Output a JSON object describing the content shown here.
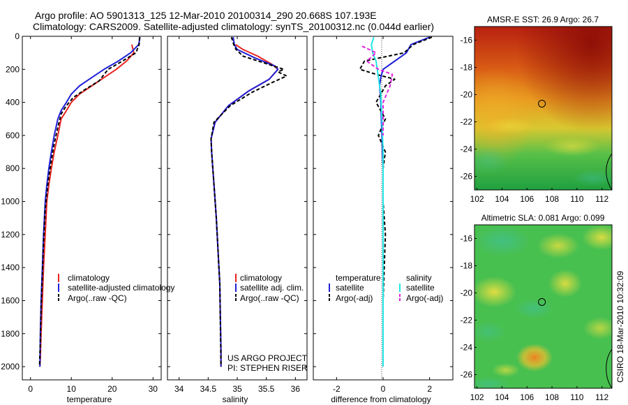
{
  "header": {
    "line1": "Argo profile: AO 5901313_125 12-Mar-2010 20100314_290 20.668S 107.193E",
    "line2": "Climatology: CARS2009. Satellite-adjusted climatology: synTS_20100312.nc (0.044d earlier)"
  },
  "credit": "CSIRO 18-Mar-2010 10:32:09",
  "colors": {
    "climatology": "#e8231f",
    "satellite": "#2020d8",
    "argo": "#000000",
    "satellite_sal": "#22e6e6",
    "argo_sal": "#e020e0"
  },
  "chart_data": [
    {
      "id": "temperature",
      "type": "line",
      "xlabel": "temperature",
      "xlim": [
        -2,
        32
      ],
      "ylim": [
        0,
        2080
      ],
      "xticks": [
        0,
        10,
        20,
        30
      ],
      "yticks": [
        0,
        200,
        400,
        600,
        800,
        1000,
        1200,
        1400,
        1600,
        1800,
        2000
      ],
      "legend": [
        "climatology",
        "satellite-adjusted climatology",
        "Argo(..raw -QC)"
      ],
      "series": [
        {
          "name": "climatology",
          "x": [
            24.8,
            25.3,
            23.5,
            21.0,
            18.0,
            15.0,
            12.0,
            10.0,
            8.8,
            7.5,
            6.7,
            5.8,
            5.1,
            4.5,
            4.0,
            3.6,
            3.2,
            2.9,
            2.6,
            2.4,
            2.3
          ],
          "y": [
            50,
            100,
            150,
            200,
            250,
            300,
            350,
            400,
            450,
            500,
            600,
            700,
            800,
            900,
            1000,
            1200,
            1400,
            1600,
            1800,
            1950,
            2000
          ]
        },
        {
          "name": "satellite",
          "x": [
            26.8,
            26.5,
            24.5,
            21.5,
            18.0,
            15.0,
            12.0,
            10.0,
            8.8,
            7.5,
            6.7,
            5.8,
            5.1,
            4.5,
            4.0,
            3.6,
            3.2,
            2.9,
            2.6,
            2.4,
            2.3
          ],
          "y": [
            5,
            50,
            100,
            150,
            200,
            250,
            300,
            350,
            400,
            450,
            500,
            600,
            700,
            800,
            900,
            1000,
            1200,
            1400,
            1600,
            1800,
            2000
          ]
        },
        {
          "name": "Argo(..raw -QC)",
          "x": [
            26.7,
            26.6,
            25.8,
            22.5,
            19.0,
            16.8,
            13.5,
            10.5,
            8.8,
            7.5,
            6.7,
            5.8,
            5.1,
            4.5,
            4.0,
            3.6,
            3.2,
            2.9,
            2.6,
            2.4,
            2.2
          ],
          "y": [
            5,
            50,
            100,
            150,
            200,
            270,
            320,
            370,
            420,
            470,
            550,
            650,
            750,
            850,
            950,
            1050,
            1250,
            1450,
            1650,
            1850,
            2000
          ]
        }
      ]
    },
    {
      "id": "salinity",
      "type": "line",
      "xlabel": "salinity",
      "xlim": [
        33.8,
        36.2
      ],
      "ylim": [
        0,
        2080
      ],
      "xticks": [
        34,
        34.5,
        35,
        35.5,
        36
      ],
      "legend": [
        "climatology",
        "satellite adj. clim.",
        "Argo(..raw -QC)"
      ],
      "annotation": [
        "US ARGO PROJECT",
        "PI: STEPHEN RISER"
      ],
      "series": [
        {
          "name": "climatology",
          "x": [
            34.97,
            35.1,
            35.35,
            35.6,
            35.7,
            35.55,
            35.2,
            34.85,
            34.62,
            34.55,
            34.56,
            34.6,
            34.64,
            34.67,
            34.7,
            34.71,
            34.72,
            34.72
          ],
          "y": [
            50,
            80,
            120,
            170,
            200,
            260,
            330,
            420,
            520,
            620,
            700,
            900,
            1100,
            1300,
            1500,
            1700,
            1900,
            2000
          ]
        },
        {
          "name": "satellite",
          "x": [
            34.93,
            34.95,
            35.0,
            35.3,
            35.65,
            35.7,
            35.55,
            35.2,
            34.85,
            34.62,
            34.55,
            34.56,
            34.6,
            34.64,
            34.67,
            34.7,
            34.71,
            34.72,
            34.72
          ],
          "y": [
            5,
            50,
            80,
            130,
            180,
            200,
            260,
            330,
            420,
            520,
            620,
            700,
            900,
            1100,
            1300,
            1500,
            1700,
            1900,
            2000
          ]
        },
        {
          "name": "Argo(..raw -QC)",
          "x": [
            34.9,
            34.94,
            34.98,
            35.1,
            35.45,
            35.8,
            35.7,
            35.85,
            35.6,
            35.25,
            34.88,
            34.6,
            34.55,
            34.56,
            34.6,
            34.64,
            34.67,
            34.7,
            34.72
          ],
          "y": [
            5,
            50,
            80,
            120,
            160,
            200,
            215,
            240,
            280,
            340,
            420,
            520,
            620,
            700,
            900,
            1100,
            1300,
            1500,
            2000
          ]
        }
      ]
    },
    {
      "id": "difference",
      "type": "line",
      "xlabel": "difference from climatology",
      "xlim": [
        -3,
        3
      ],
      "ylim": [
        0,
        2080
      ],
      "xticks": [
        -2,
        0,
        2
      ],
      "legend_titles": [
        "temperature",
        "salinity"
      ],
      "legend": [
        "satellite",
        "Argo(-adj)",
        "satellite",
        "Argo(-adj)"
      ],
      "series": [
        {
          "name": "temperature satellite",
          "x": [
            2.0,
            1.2,
            1.0,
            0.5,
            0.0,
            -0.1,
            -0.15,
            -0.1,
            -0.05,
            0.0,
            0.0,
            0.0,
            0.0
          ],
          "y": [
            5,
            50,
            100,
            150,
            200,
            250,
            300,
            400,
            600,
            800,
            1200,
            1600,
            2000
          ]
        },
        {
          "name": "temperature Argo(-adj)",
          "x": [
            2.1,
            1.3,
            0.9,
            -0.8,
            -1.0,
            -0.3,
            0.5,
            0.1,
            -0.3,
            0.1,
            -0.2,
            0.1,
            0.0,
            0.0,
            0.1,
            0.0,
            0.0
          ],
          "y": [
            5,
            50,
            100,
            150,
            200,
            230,
            260,
            300,
            400,
            500,
            600,
            700,
            800,
            1000,
            1200,
            1600,
            2000
          ]
        },
        {
          "name": "salinity satellite",
          "x": [
            -0.4,
            -0.5,
            -0.45,
            -0.3,
            -0.2,
            -0.1,
            -0.05,
            0.0,
            0.0,
            0.0,
            0.0
          ],
          "y": [
            5,
            50,
            100,
            150,
            250,
            350,
            500,
            700,
            1000,
            1500,
            2000
          ]
        },
        {
          "name": "salinity Argo(-adj)",
          "x": [
            -0.9,
            -0.6,
            -0.3,
            -0.7,
            -0.2,
            0.4,
            0.3,
            0.0,
            0.0
          ],
          "y": [
            60,
            80,
            100,
            150,
            200,
            230,
            300,
            400,
            600
          ]
        }
      ]
    },
    {
      "id": "sst",
      "type": "heatmap",
      "title": "AMSR-E SST: 26.9 Argo: 26.7",
      "xlim": [
        101.8,
        112.8
      ],
      "ylim": [
        -27,
        -15
      ],
      "xticks": [
        102,
        104,
        106,
        108,
        110,
        112
      ],
      "yticks": [
        -16,
        -18,
        -20,
        -22,
        -24,
        -26
      ],
      "marker": [
        107.193,
        -20.668
      ]
    },
    {
      "id": "sla",
      "type": "heatmap",
      "title": "Altimetric SLA: 0.081 Argo: 0.099",
      "xlim": [
        101.8,
        112.8
      ],
      "ylim": [
        -27,
        -15
      ],
      "xticks": [
        102,
        104,
        106,
        108,
        110,
        112
      ],
      "yticks": [
        -16,
        -18,
        -20,
        -22,
        -24,
        -26
      ],
      "marker": [
        107.193,
        -20.668
      ]
    }
  ]
}
